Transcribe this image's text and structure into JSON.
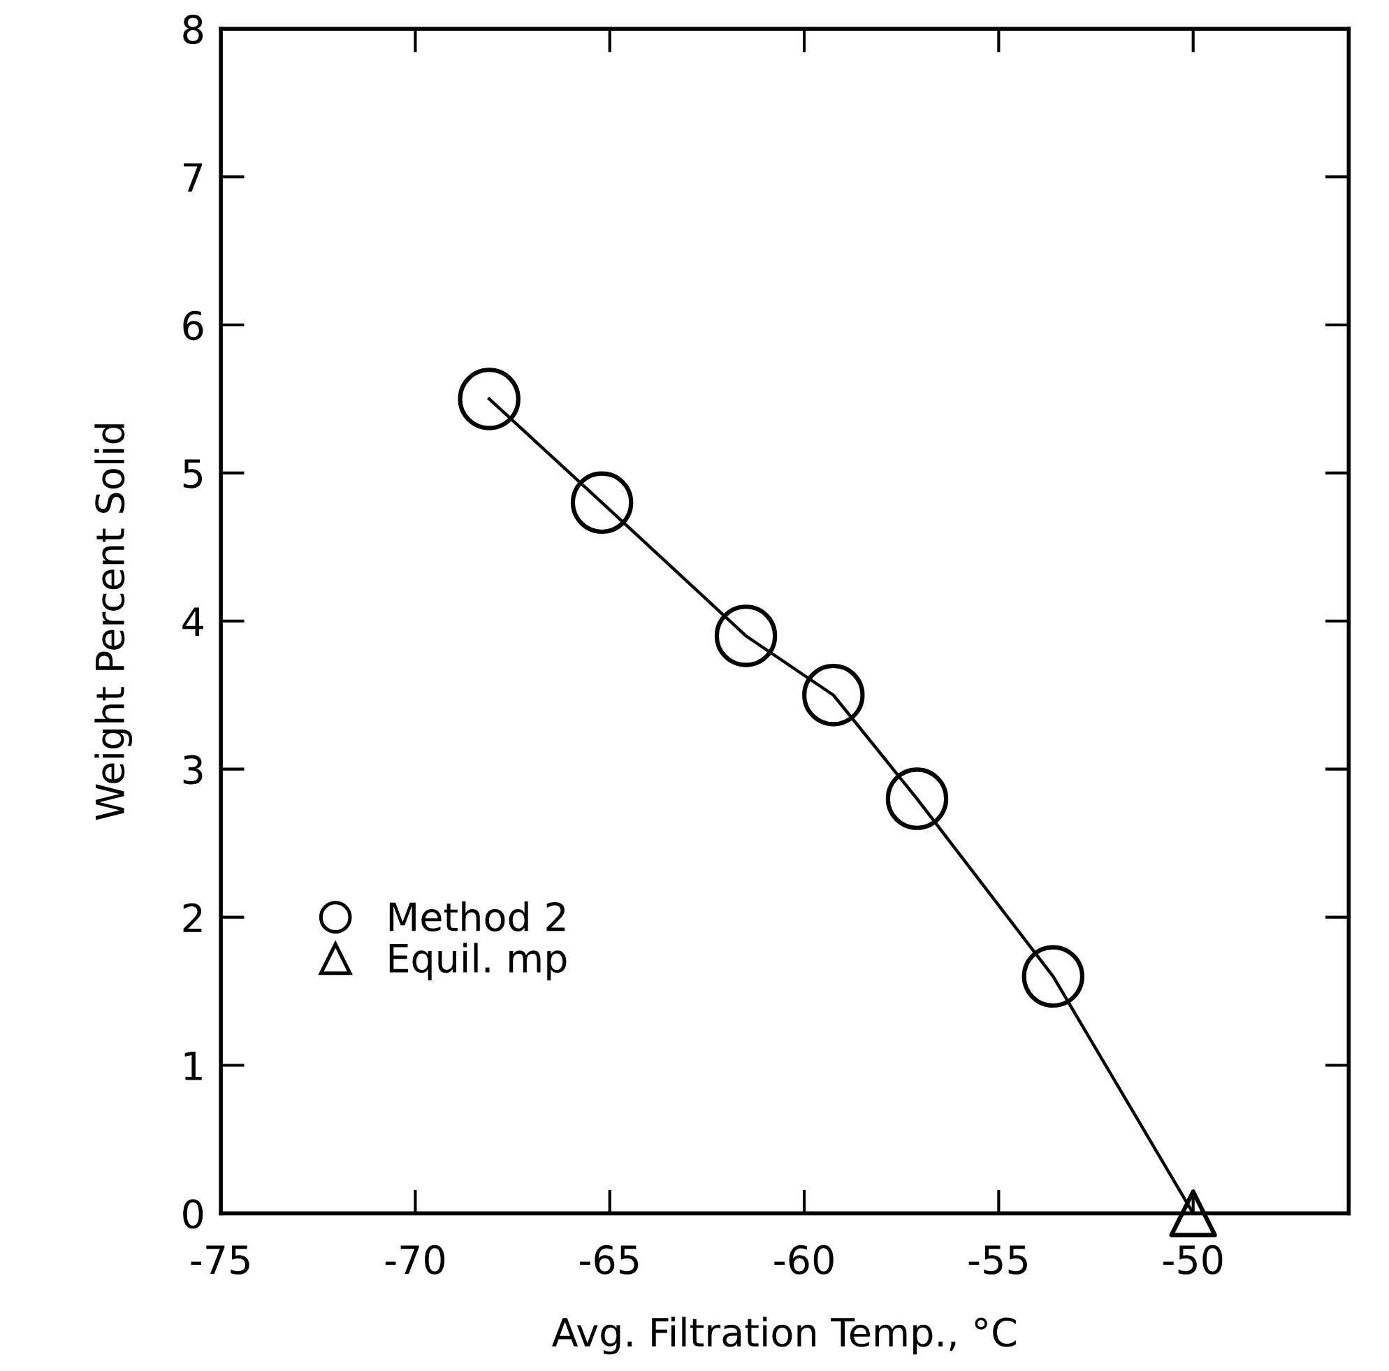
{
  "chart_data": {
    "type": "scatter",
    "xlabel": "Avg. Filtration Temp., °C",
    "ylabel": "Weight Percent Solid",
    "xlim": [
      -75,
      -46
    ],
    "xticks": [
      -75,
      -70,
      -65,
      -60,
      -55,
      -50
    ],
    "ylim": [
      0,
      8
    ],
    "yticks": [
      0,
      1,
      2,
      3,
      4,
      5,
      6,
      7,
      8
    ],
    "grid": false,
    "legend": "center left",
    "series": [
      {
        "type": "line",
        "color": "#000000",
        "marker": "none",
        "line_style": "solid",
        "x": [
          -68.1,
          -65.2,
          -61.5,
          -59.25,
          -57.1,
          -53.6,
          -50
        ],
        "values": [
          5.5,
          4.8,
          3.9,
          3.5,
          2.8,
          1.6,
          0
        ]
      },
      {
        "name": "Method 2",
        "color": "#000000",
        "marker": "circle",
        "x": [
          -68.1,
          -65.2,
          -61.5,
          -59.25,
          -57.1,
          -53.6
        ],
        "values": [
          5.5,
          4.8,
          3.9,
          3.5,
          2.8,
          1.6
        ]
      },
      {
        "name": "Equil. mp",
        "color": "#000000",
        "marker": "triangle",
        "x": [
          -50
        ],
        "values": [
          0
        ]
      }
    ]
  }
}
